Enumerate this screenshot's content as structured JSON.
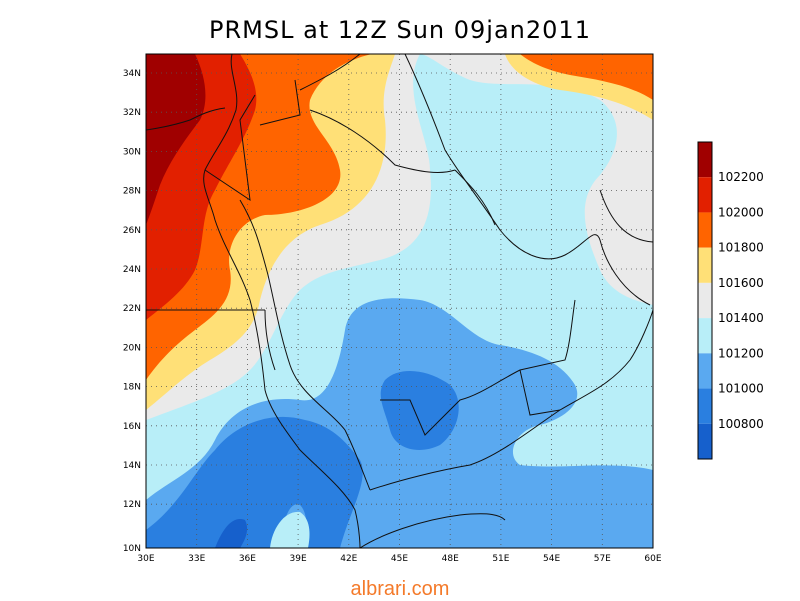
{
  "title": "PRMSL at 12Z Sun 09jan2011",
  "watermark": "albrari.com",
  "map": {
    "lon_ticks": [
      "30E",
      "33E",
      "36E",
      "39E",
      "42E",
      "45E",
      "48E",
      "51E",
      "54E",
      "57E",
      "60E"
    ],
    "lat_ticks": [
      "34N",
      "32N",
      "30N",
      "28N",
      "26N",
      "24N",
      "22N",
      "20N",
      "18N",
      "16N",
      "14N",
      "12N",
      "10N"
    ],
    "grid": true
  },
  "colorbar": {
    "labels": [
      "102200",
      "102000",
      "101800",
      "101600",
      "101400",
      "101200",
      "101000",
      "100800"
    ],
    "colors": [
      "#a00000",
      "#e22000",
      "#ff6400",
      "#ffe077",
      "#eaeaea",
      "#b8eef8",
      "#5aa9f0",
      "#2a7fe0",
      "#1660cc"
    ]
  }
}
